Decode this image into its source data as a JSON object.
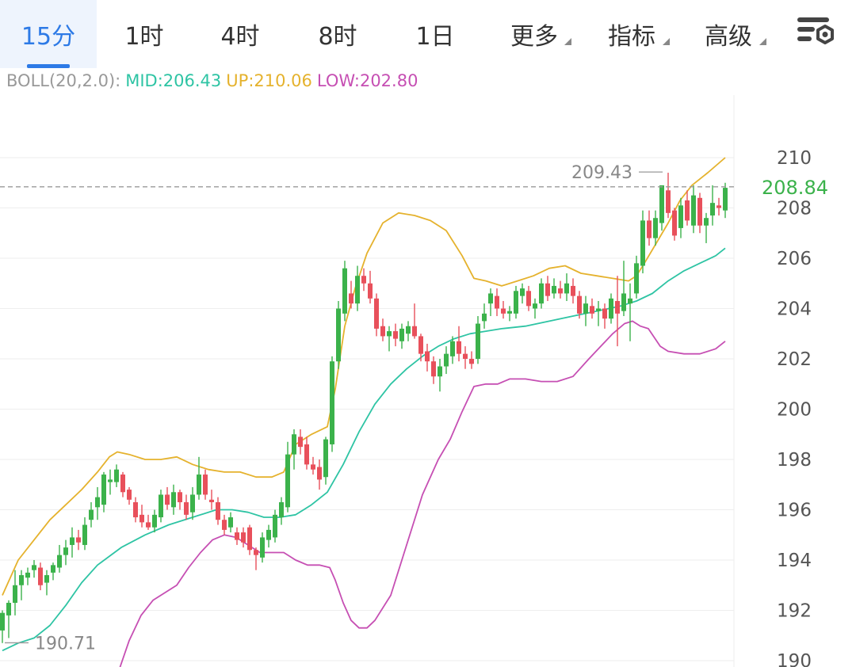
{
  "tabs": [
    {
      "label": "15分",
      "active": true
    },
    {
      "label": "1时"
    },
    {
      "label": "4时"
    },
    {
      "label": "8时"
    },
    {
      "label": "1日"
    },
    {
      "label": "更多",
      "dropdown": true
    },
    {
      "label": "指标",
      "dropdown": true
    },
    {
      "label": "高级",
      "dropdown": true
    }
  ],
  "settings_icon": "chart-settings-icon",
  "legend": {
    "name": "BOLL(20,2.0):",
    "mid": "MID:206.43",
    "up": "UP:210.06",
    "low": "LOW:202.80"
  },
  "colors": {
    "active_tab": "#2d7ae6",
    "up_candle": "#3bb24b",
    "down_candle": "#e8505b",
    "mid": "#2ec4a4",
    "up_band": "#e5b22d",
    "low_band": "#c64fb3",
    "last_price": "#3bb24b"
  },
  "chart_data": {
    "type": "candlestick",
    "indicator": "BOLL(20,2.0)",
    "yticks": [
      190,
      192,
      194,
      196,
      198,
      200,
      202,
      204,
      206,
      208,
      210
    ],
    "ylim": [
      189.7,
      212.2
    ],
    "high_label": "209.43",
    "low_label": "190.71",
    "last_price": "208.84",
    "last_price_value": 208.84,
    "up_band_points": [
      [
        0,
        192.6
      ],
      [
        10,
        193.3
      ],
      [
        20,
        194.0
      ],
      [
        40,
        194.8
      ],
      [
        60,
        195.6
      ],
      [
        80,
        196.2
      ],
      [
        100,
        196.8
      ],
      [
        120,
        197.5
      ],
      [
        135,
        198.1
      ],
      [
        145,
        198.3
      ],
      [
        160,
        198.2
      ],
      [
        180,
        198.0
      ],
      [
        200,
        198.0
      ],
      [
        220,
        198.1
      ],
      [
        240,
        197.8
      ],
      [
        260,
        197.6
      ],
      [
        280,
        197.5
      ],
      [
        300,
        197.5
      ],
      [
        320,
        197.3
      ],
      [
        340,
        197.3
      ],
      [
        355,
        197.5
      ],
      [
        370,
        198.6
      ],
      [
        390,
        199.0
      ],
      [
        410,
        199.3
      ],
      [
        420,
        200.8
      ],
      [
        432,
        203.3
      ],
      [
        445,
        204.8
      ],
      [
        460,
        206.2
      ],
      [
        480,
        207.4
      ],
      [
        500,
        207.8
      ],
      [
        520,
        207.7
      ],
      [
        540,
        207.5
      ],
      [
        560,
        207.1
      ],
      [
        580,
        206.1
      ],
      [
        595,
        205.2
      ],
      [
        610,
        205.1
      ],
      [
        630,
        204.9
      ],
      [
        650,
        205.1
      ],
      [
        670,
        205.3
      ],
      [
        690,
        205.6
      ],
      [
        710,
        205.7
      ],
      [
        730,
        205.4
      ],
      [
        750,
        205.3
      ],
      [
        770,
        205.2
      ],
      [
        790,
        205.1
      ],
      [
        800,
        205.3
      ],
      [
        810,
        205.8
      ],
      [
        825,
        206.6
      ],
      [
        840,
        207.4
      ],
      [
        855,
        208.3
      ],
      [
        870,
        208.9
      ],
      [
        890,
        209.4
      ],
      [
        912,
        210.0
      ]
    ],
    "mid_points": [
      [
        0,
        190.4
      ],
      [
        20,
        190.7
      ],
      [
        40,
        190.9
      ],
      [
        60,
        191.4
      ],
      [
        80,
        192.2
      ],
      [
        100,
        193.1
      ],
      [
        120,
        193.8
      ],
      [
        150,
        194.5
      ],
      [
        180,
        195.0
      ],
      [
        210,
        195.4
      ],
      [
        240,
        195.7
      ],
      [
        270,
        196.0
      ],
      [
        290,
        196.0
      ],
      [
        310,
        195.9
      ],
      [
        330,
        195.7
      ],
      [
        350,
        195.7
      ],
      [
        370,
        195.8
      ],
      [
        390,
        196.2
      ],
      [
        410,
        196.7
      ],
      [
        430,
        197.8
      ],
      [
        450,
        199.1
      ],
      [
        470,
        200.2
      ],
      [
        490,
        201.0
      ],
      [
        510,
        201.6
      ],
      [
        530,
        202.1
      ],
      [
        550,
        202.5
      ],
      [
        570,
        202.8
      ],
      [
        590,
        203.0
      ],
      [
        610,
        203.1
      ],
      [
        630,
        203.2
      ],
      [
        660,
        203.3
      ],
      [
        690,
        203.5
      ],
      [
        720,
        203.7
      ],
      [
        750,
        203.9
      ],
      [
        780,
        204.1
      ],
      [
        800,
        204.3
      ],
      [
        820,
        204.6
      ],
      [
        840,
        205.1
      ],
      [
        860,
        205.5
      ],
      [
        880,
        205.8
      ],
      [
        900,
        206.1
      ],
      [
        912,
        206.4
      ]
    ],
    "low_band_points": [
      [
        148,
        189.7
      ],
      [
        160,
        190.8
      ],
      [
        175,
        191.8
      ],
      [
        190,
        192.4
      ],
      [
        205,
        192.7
      ],
      [
        220,
        193.0
      ],
      [
        235,
        193.7
      ],
      [
        250,
        194.3
      ],
      [
        265,
        194.8
      ],
      [
        280,
        195.0
      ],
      [
        295,
        194.9
      ],
      [
        310,
        194.6
      ],
      [
        325,
        194.3
      ],
      [
        340,
        194.3
      ],
      [
        355,
        194.3
      ],
      [
        370,
        194.0
      ],
      [
        385,
        193.8
      ],
      [
        400,
        193.8
      ],
      [
        413,
        193.7
      ],
      [
        420,
        193.2
      ],
      [
        430,
        192.3
      ],
      [
        440,
        191.6
      ],
      [
        450,
        191.3
      ],
      [
        460,
        191.3
      ],
      [
        470,
        191.6
      ],
      [
        490,
        192.6
      ],
      [
        510,
        194.6
      ],
      [
        530,
        196.6
      ],
      [
        550,
        198.0
      ],
      [
        565,
        198.8
      ],
      [
        580,
        199.9
      ],
      [
        595,
        200.9
      ],
      [
        610,
        201.0
      ],
      [
        625,
        201.0
      ],
      [
        640,
        201.2
      ],
      [
        660,
        201.2
      ],
      [
        680,
        201.1
      ],
      [
        700,
        201.1
      ],
      [
        720,
        201.3
      ],
      [
        740,
        202.0
      ],
      [
        755,
        202.5
      ],
      [
        770,
        203.0
      ],
      [
        785,
        203.4
      ],
      [
        795,
        203.5
      ],
      [
        805,
        203.3
      ],
      [
        815,
        203.2
      ],
      [
        830,
        202.5
      ],
      [
        840,
        202.3
      ],
      [
        860,
        202.2
      ],
      [
        880,
        202.2
      ],
      [
        900,
        202.4
      ],
      [
        912,
        202.7
      ]
    ],
    "candles": [
      [
        0,
        191.2,
        192.0,
        190.7,
        191.9
      ],
      [
        8,
        191.8,
        192.4,
        190.9,
        192.3
      ],
      [
        16,
        192.3,
        193.6,
        191.8,
        193.0
      ],
      [
        24,
        193.0,
        193.6,
        192.4,
        193.4
      ],
      [
        32,
        193.3,
        193.7,
        193.0,
        193.5
      ],
      [
        40,
        193.6,
        194.0,
        193.3,
        193.8
      ],
      [
        48,
        193.7,
        193.9,
        192.8,
        193.0
      ],
      [
        56,
        193.1,
        193.6,
        192.6,
        193.4
      ],
      [
        64,
        193.5,
        193.9,
        193.2,
        193.8
      ],
      [
        72,
        193.7,
        194.6,
        193.5,
        194.2
      ],
      [
        80,
        194.2,
        194.8,
        193.8,
        194.5
      ],
      [
        88,
        194.6,
        195.3,
        194.1,
        194.9
      ],
      [
        96,
        194.9,
        195.2,
        194.4,
        194.7
      ],
      [
        104,
        194.6,
        195.7,
        194.4,
        195.4
      ],
      [
        112,
        195.6,
        196.3,
        195.3,
        196.0
      ],
      [
        120,
        196.1,
        196.9,
        195.6,
        196.5
      ],
      [
        128,
        196.2,
        197.5,
        195.9,
        197.4
      ],
      [
        136,
        197.1,
        197.6,
        196.6,
        197.2
      ],
      [
        144,
        197.1,
        197.8,
        196.9,
        197.6
      ],
      [
        152,
        197.4,
        197.5,
        196.5,
        196.7
      ],
      [
        160,
        196.8,
        196.9,
        196.2,
        196.4
      ],
      [
        168,
        196.3,
        196.5,
        195.5,
        195.7
      ],
      [
        176,
        195.8,
        196.2,
        195.3,
        195.5
      ],
      [
        184,
        195.5,
        195.8,
        195.2,
        195.3
      ],
      [
        192,
        195.3,
        196.0,
        195.1,
        195.8
      ],
      [
        200,
        195.7,
        196.8,
        195.5,
        196.6
      ],
      [
        208,
        196.6,
        196.9,
        196.0,
        196.2
      ],
      [
        216,
        196.1,
        197.0,
        195.8,
        196.7
      ],
      [
        224,
        196.7,
        196.8,
        196.0,
        196.3
      ],
      [
        232,
        196.3,
        196.6,
        195.6,
        195.8
      ],
      [
        240,
        195.9,
        196.9,
        195.6,
        196.6
      ],
      [
        248,
        196.6,
        198.1,
        196.4,
        197.4
      ],
      [
        256,
        197.4,
        197.6,
        196.4,
        196.6
      ],
      [
        264,
        196.4,
        196.8,
        196.0,
        196.3
      ],
      [
        272,
        196.3,
        196.5,
        195.4,
        195.6
      ],
      [
        280,
        195.6,
        195.8,
        195.0,
        195.2
      ],
      [
        288,
        195.3,
        195.9,
        195.1,
        195.7
      ],
      [
        296,
        195.1,
        195.3,
        194.6,
        194.8
      ],
      [
        304,
        195.1,
        195.3,
        194.5,
        194.7
      ],
      [
        312,
        195.3,
        195.4,
        194.2,
        194.4
      ],
      [
        320,
        194.4,
        194.5,
        193.6,
        194.2
      ],
      [
        328,
        194.1,
        195.1,
        193.9,
        194.9
      ],
      [
        336,
        194.8,
        195.4,
        194.5,
        195.2
      ],
      [
        344,
        194.9,
        196.0,
        194.7,
        195.8
      ],
      [
        352,
        195.7,
        196.5,
        195.4,
        196.3
      ],
      [
        360,
        196.1,
        198.7,
        195.9,
        198.2
      ],
      [
        368,
        198.2,
        199.2,
        197.6,
        199.0
      ],
      [
        376,
        198.9,
        199.2,
        198.2,
        198.5
      ],
      [
        384,
        198.6,
        198.9,
        197.6,
        197.8
      ],
      [
        392,
        197.8,
        198.1,
        197.4,
        197.6
      ],
      [
        400,
        197.7,
        198.0,
        196.8,
        197.2
      ],
      [
        408,
        197.3,
        198.9,
        197.0,
        198.8
      ],
      [
        416,
        198.6,
        202.1,
        198.3,
        201.9
      ],
      [
        424,
        201.9,
        204.3,
        201.6,
        204.0
      ],
      [
        432,
        203.8,
        205.9,
        203.5,
        205.6
      ],
      [
        440,
        204.6,
        205.1,
        204.0,
        204.2
      ],
      [
        448,
        204.2,
        205.7,
        203.9,
        205.3
      ],
      [
        456,
        205.3,
        205.6,
        204.7,
        205.0
      ],
      [
        464,
        205.0,
        205.5,
        204.2,
        204.4
      ],
      [
        472,
        204.4,
        204.6,
        202.9,
        203.2
      ],
      [
        480,
        203.3,
        203.6,
        202.7,
        202.9
      ],
      [
        488,
        202.9,
        203.3,
        202.3,
        203.1
      ],
      [
        496,
        203.1,
        203.4,
        202.5,
        202.8
      ],
      [
        504,
        202.7,
        203.4,
        202.4,
        203.2
      ],
      [
        512,
        203.0,
        203.5,
        202.7,
        203.3
      ],
      [
        520,
        203.3,
        204.2,
        202.8,
        202.9
      ],
      [
        528,
        202.9,
        203.0,
        201.9,
        202.2
      ],
      [
        536,
        202.3,
        202.6,
        201.5,
        201.9
      ],
      [
        544,
        201.9,
        202.1,
        201.0,
        201.3
      ],
      [
        552,
        201.3,
        202.0,
        200.7,
        201.7
      ],
      [
        560,
        201.7,
        202.5,
        201.4,
        202.2
      ],
      [
        568,
        202.1,
        202.9,
        201.8,
        202.7
      ],
      [
        576,
        202.7,
        203.3,
        201.9,
        202.2
      ],
      [
        584,
        202.2,
        202.5,
        201.6,
        202.0
      ],
      [
        592,
        202.0,
        202.3,
        201.6,
        201.8
      ],
      [
        600,
        202.0,
        203.7,
        201.8,
        203.4
      ],
      [
        608,
        203.5,
        204.2,
        203.2,
        203.8
      ],
      [
        616,
        204.2,
        204.8,
        203.7,
        204.6
      ],
      [
        624,
        204.5,
        204.8,
        203.7,
        204.0
      ],
      [
        632,
        204.0,
        204.3,
        203.6,
        203.8
      ],
      [
        640,
        203.8,
        204.1,
        203.5,
        203.9
      ],
      [
        648,
        203.8,
        204.9,
        203.6,
        204.7
      ],
      [
        656,
        204.5,
        205.0,
        204.2,
        204.8
      ],
      [
        664,
        204.7,
        204.9,
        203.9,
        204.1
      ],
      [
        672,
        204.0,
        204.4,
        203.6,
        204.2
      ],
      [
        680,
        204.2,
        205.2,
        204.0,
        205.0
      ],
      [
        688,
        205.0,
        205.3,
        204.3,
        204.5
      ],
      [
        696,
        204.6,
        205.2,
        204.4,
        204.9
      ],
      [
        704,
        204.8,
        205.1,
        204.4,
        204.6
      ],
      [
        712,
        204.6,
        205.4,
        204.3,
        205.0
      ],
      [
        720,
        204.9,
        205.2,
        204.2,
        204.5
      ],
      [
        728,
        204.5,
        204.7,
        203.6,
        203.8
      ],
      [
        736,
        203.8,
        204.5,
        203.3,
        204.2
      ],
      [
        744,
        204.1,
        204.4,
        203.6,
        203.8
      ],
      [
        752,
        203.9,
        204.3,
        203.3,
        204.0
      ],
      [
        760,
        204.0,
        204.2,
        203.2,
        203.6
      ],
      [
        768,
        203.6,
        204.6,
        203.4,
        204.4
      ],
      [
        776,
        204.3,
        205.3,
        202.5,
        203.8
      ],
      [
        784,
        203.9,
        205.9,
        203.7,
        204.6
      ],
      [
        792,
        204.2,
        205.0,
        202.7,
        204.4
      ],
      [
        800,
        204.6,
        206.1,
        204.4,
        205.8
      ],
      [
        808,
        205.7,
        207.9,
        205.4,
        207.5
      ],
      [
        816,
        207.5,
        207.9,
        206.5,
        206.8
      ],
      [
        824,
        206.8,
        207.9,
        206.5,
        207.6
      ],
      [
        832,
        207.4,
        208.9,
        207.1,
        208.9
      ],
      [
        840,
        208.7,
        209.4,
        207.6,
        207.8
      ],
      [
        848,
        207.9,
        208.0,
        206.7,
        206.9
      ],
      [
        856,
        207.2,
        208.4,
        206.8,
        208.1
      ],
      [
        864,
        208.3,
        208.7,
        207.3,
        207.5
      ],
      [
        872,
        207.3,
        208.9,
        207.0,
        208.5
      ],
      [
        880,
        208.4,
        208.6,
        207.0,
        207.3
      ],
      [
        888,
        207.3,
        207.8,
        206.6,
        207.6
      ],
      [
        896,
        207.7,
        208.9,
        207.3,
        208.2
      ],
      [
        904,
        208.1,
        208.4,
        207.7,
        208.0
      ],
      [
        912,
        207.9,
        209.0,
        207.6,
        208.8
      ]
    ]
  }
}
